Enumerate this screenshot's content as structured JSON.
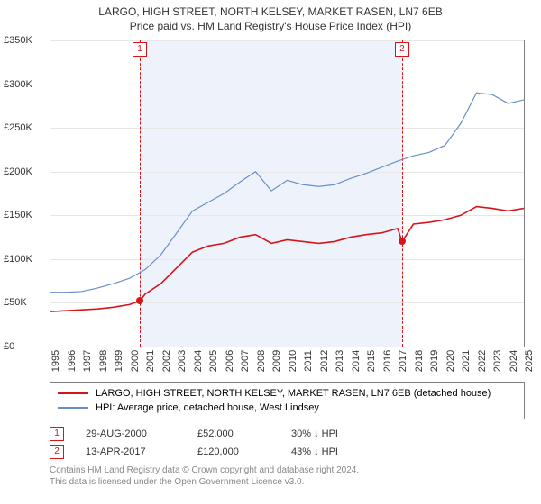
{
  "titles": {
    "main": "LARGO, HIGH STREET, NORTH KELSEY, MARKET RASEN, LN7 6EB",
    "sub": "Price paid vs. HM Land Registry's House Price Index (HPI)"
  },
  "chart": {
    "type": "line",
    "background_color": "#ffffff",
    "shaded_color": "#eef3fb",
    "grid_color": "#e6e6e6",
    "border_color": "#808080",
    "ylim": [
      0,
      350000
    ],
    "ytick_step": 50000,
    "yticks": [
      "£0",
      "£50K",
      "£100K",
      "£150K",
      "£200K",
      "£250K",
      "£300K",
      "£350K"
    ],
    "xlim": [
      1995,
      2025
    ],
    "xticks": [
      1995,
      1996,
      1997,
      1998,
      1999,
      2000,
      2001,
      2002,
      2003,
      2004,
      2005,
      2006,
      2007,
      2008,
      2009,
      2010,
      2011,
      2012,
      2013,
      2014,
      2015,
      2016,
      2017,
      2018,
      2019,
      2020,
      2021,
      2022,
      2023,
      2024,
      2025
    ],
    "shaded_start": 2000.66,
    "shaded_end": 2017.28,
    "series": [
      {
        "name": "property",
        "color": "#d6151b",
        "width": 1.6,
        "points": [
          [
            1995,
            40000
          ],
          [
            1996,
            41000
          ],
          [
            1997,
            42000
          ],
          [
            1998,
            43000
          ],
          [
            1999,
            45000
          ],
          [
            2000,
            48000
          ],
          [
            2000.66,
            52000
          ],
          [
            2001,
            60000
          ],
          [
            2002,
            72000
          ],
          [
            2003,
            90000
          ],
          [
            2004,
            108000
          ],
          [
            2005,
            115000
          ],
          [
            2006,
            118000
          ],
          [
            2007,
            125000
          ],
          [
            2008,
            128000
          ],
          [
            2009,
            118000
          ],
          [
            2010,
            122000
          ],
          [
            2011,
            120000
          ],
          [
            2012,
            118000
          ],
          [
            2013,
            120000
          ],
          [
            2014,
            125000
          ],
          [
            2015,
            128000
          ],
          [
            2016,
            130000
          ],
          [
            2017,
            135000
          ],
          [
            2017.28,
            120000
          ],
          [
            2018,
            140000
          ],
          [
            2019,
            142000
          ],
          [
            2020,
            145000
          ],
          [
            2021,
            150000
          ],
          [
            2022,
            160000
          ],
          [
            2023,
            158000
          ],
          [
            2024,
            155000
          ],
          [
            2025,
            158000
          ]
        ]
      },
      {
        "name": "hpi",
        "color": "#6a8fc7",
        "width": 1.2,
        "points": [
          [
            1995,
            62000
          ],
          [
            1996,
            62000
          ],
          [
            1997,
            63000
          ],
          [
            1998,
            67000
          ],
          [
            1999,
            72000
          ],
          [
            2000,
            78000
          ],
          [
            2001,
            88000
          ],
          [
            2002,
            105000
          ],
          [
            2003,
            130000
          ],
          [
            2004,
            155000
          ],
          [
            2005,
            165000
          ],
          [
            2006,
            175000
          ],
          [
            2007,
            188000
          ],
          [
            2008,
            200000
          ],
          [
            2009,
            178000
          ],
          [
            2010,
            190000
          ],
          [
            2011,
            185000
          ],
          [
            2012,
            183000
          ],
          [
            2013,
            185000
          ],
          [
            2014,
            192000
          ],
          [
            2015,
            198000
          ],
          [
            2016,
            205000
          ],
          [
            2017,
            212000
          ],
          [
            2018,
            218000
          ],
          [
            2019,
            222000
          ],
          [
            2020,
            230000
          ],
          [
            2021,
            255000
          ],
          [
            2022,
            290000
          ],
          [
            2023,
            288000
          ],
          [
            2024,
            278000
          ],
          [
            2025,
            282000
          ]
        ]
      }
    ],
    "markers": [
      {
        "id": "1",
        "x": 2000.66,
        "y": 52000,
        "color": "#d6151b"
      },
      {
        "id": "2",
        "x": 2017.28,
        "y": 120000,
        "color": "#d6151b"
      }
    ]
  },
  "legend": {
    "items": [
      {
        "color": "#d6151b",
        "label": "LARGO, HIGH STREET, NORTH KELSEY, MARKET RASEN, LN7 6EB (detached house)"
      },
      {
        "color": "#6a8fc7",
        "label": "HPI: Average price, detached house, West Lindsey"
      }
    ]
  },
  "sales": [
    {
      "marker": "1",
      "color": "#d6151b",
      "date": "29-AUG-2000",
      "price": "£52,000",
      "pct": "30% ↓ HPI"
    },
    {
      "marker": "2",
      "color": "#d6151b",
      "date": "13-APR-2017",
      "price": "£120,000",
      "pct": "43% ↓ HPI"
    }
  ],
  "footer": {
    "line1": "Contains HM Land Registry data © Crown copyright and database right 2024.",
    "line2": "This data is licensed under the Open Government Licence v3.0."
  }
}
